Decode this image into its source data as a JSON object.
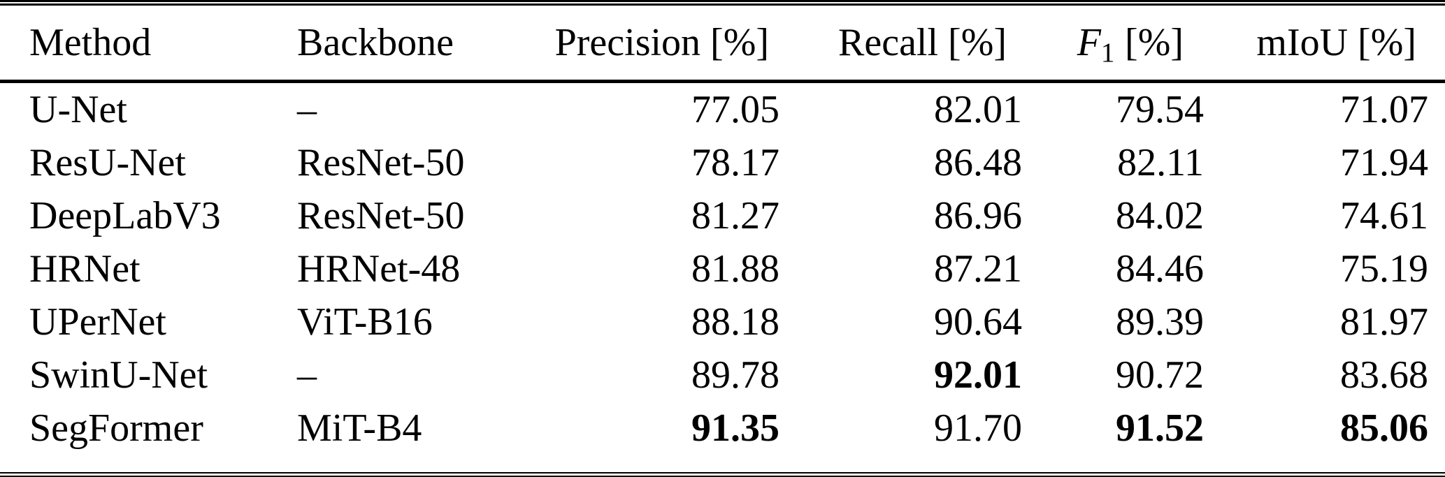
{
  "table": {
    "description_colors": {
      "text": "#000000",
      "background": "#ffffff",
      "rule": "#000000"
    },
    "columns": [
      {
        "key": "method",
        "label": "Method"
      },
      {
        "key": "backbone",
        "label": "Backbone"
      },
      {
        "key": "precision",
        "label": "Precision [%]"
      },
      {
        "key": "recall",
        "label": "Recall [%]"
      },
      {
        "key": "f1",
        "label_f": "F",
        "label_sub": "1",
        "label_unit": "[%]"
      },
      {
        "key": "miou",
        "label": "mIoU [%]"
      }
    ],
    "rows": [
      {
        "method": "U-Net",
        "backbone": "–",
        "precision": "77.05",
        "recall": "82.01",
        "f1": "79.54",
        "miou": "71.07",
        "bold": []
      },
      {
        "method": "ResU-Net",
        "backbone": "ResNet-50",
        "precision": "78.17",
        "recall": "86.48",
        "f1": "82.11",
        "miou": "71.94",
        "bold": []
      },
      {
        "method": "DeepLabV3",
        "backbone": "ResNet-50",
        "precision": "81.27",
        "recall": "86.96",
        "f1": "84.02",
        "miou": "74.61",
        "bold": []
      },
      {
        "method": "HRNet",
        "backbone": "HRNet-48",
        "precision": "81.88",
        "recall": "87.21",
        "f1": "84.46",
        "miou": "75.19",
        "bold": []
      },
      {
        "method": "UPerNet",
        "backbone": "ViT-B16",
        "precision": "88.18",
        "recall": "90.64",
        "f1": "89.39",
        "miou": "81.97",
        "bold": []
      },
      {
        "method": "SwinU-Net",
        "backbone": "–",
        "precision": "89.78",
        "recall": "92.01",
        "f1": "90.72",
        "miou": "83.68",
        "bold": [
          "recall"
        ]
      },
      {
        "method": "SegFormer",
        "backbone": "MiT-B4",
        "precision": "91.35",
        "recall": "91.70",
        "f1": "91.52",
        "miou": "85.06",
        "bold": [
          "precision",
          "f1",
          "miou"
        ]
      }
    ]
  },
  "chart_data": {
    "type": "table",
    "title": "",
    "columns": [
      "Method",
      "Backbone",
      "Precision [%]",
      "Recall [%]",
      "F1 [%]",
      "mIoU [%]"
    ],
    "rows": [
      [
        "U-Net",
        "–",
        77.05,
        82.01,
        79.54,
        71.07
      ],
      [
        "ResU-Net",
        "ResNet-50",
        78.17,
        86.48,
        82.11,
        71.94
      ],
      [
        "DeepLabV3",
        "ResNet-50",
        81.27,
        86.96,
        84.02,
        74.61
      ],
      [
        "HRNet",
        "HRNet-48",
        81.88,
        87.21,
        84.46,
        75.19
      ],
      [
        "UPerNet",
        "ViT-B16",
        88.18,
        90.64,
        89.39,
        81.97
      ],
      [
        "SwinU-Net",
        "–",
        89.78,
        92.01,
        90.72,
        83.68
      ],
      [
        "SegFormer",
        "MiT-B4",
        91.35,
        91.7,
        91.52,
        85.06
      ]
    ],
    "bold_cells": [
      {
        "row": "SwinU-Net",
        "column": "Recall [%]"
      },
      {
        "row": "SegFormer",
        "column": "Precision [%]"
      },
      {
        "row": "SegFormer",
        "column": "F1 [%]"
      },
      {
        "row": "SegFormer",
        "column": "mIoU [%]"
      }
    ]
  }
}
